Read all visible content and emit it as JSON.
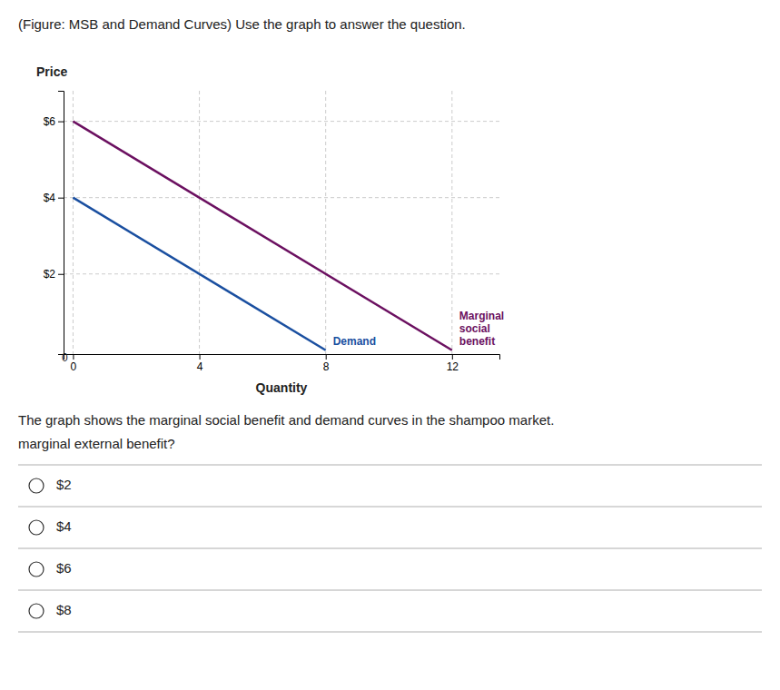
{
  "chart_data": {
    "type": "line",
    "title": "(Figure: MSB and Demand Curves) Use the graph to answer the question.",
    "xlabel": "Quantity",
    "ylabel": "Price",
    "series": [
      {
        "name": "Demand",
        "color": "#1a4fa0",
        "x": [
          0,
          8
        ],
        "values": [
          4,
          0
        ]
      },
      {
        "name": "Marginal\nsocial\nbenefit",
        "color": "#6b1060",
        "x": [
          0,
          12
        ],
        "values": [
          6,
          0
        ]
      }
    ],
    "xlim": [
      -0.3,
      13.5
    ],
    "ylim": [
      -0.1,
      6.8
    ],
    "xticks": [
      0,
      4,
      8,
      12
    ],
    "yticks": [
      {
        "value": 2,
        "label": "$2"
      },
      {
        "value": 4,
        "label": "$4"
      },
      {
        "value": 6,
        "label": "$6"
      }
    ],
    "grid": true,
    "annotations": [
      {
        "text": "0",
        "x": -0.05,
        "y": -0.08
      }
    ]
  },
  "question": [
    "The graph shows the marginal social benefit and demand curves in the shampoo market.",
    "marginal external benefit?"
  ],
  "choices": [
    "$2",
    "$4",
    "$6",
    "$8"
  ]
}
